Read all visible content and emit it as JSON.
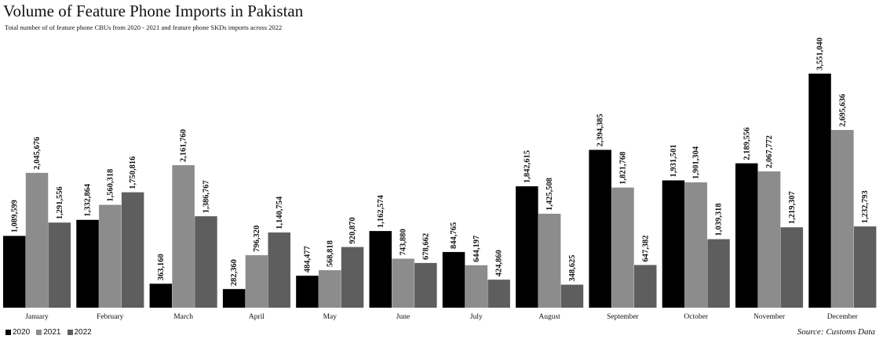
{
  "chart_data": {
    "type": "bar",
    "title": "Volume of Feature Phone Imports in Pakistan",
    "subtitle": "Total number of  of feature phone CBUs from 2020 - 2021 and feature phone SKDs imports across 2022",
    "categories": [
      "January",
      "February",
      "March",
      "April",
      "May",
      "June",
      "July",
      "August",
      "September",
      "October",
      "November",
      "December"
    ],
    "series": [
      {
        "name": "2020",
        "color": "#000000",
        "values": [
          1089599,
          1332864,
          363160,
          282360,
          484477,
          1162574,
          844765,
          1842615,
          2394385,
          1931501,
          2189556,
          3551040
        ],
        "labels": [
          "1,089,599",
          "1,332,864",
          "363,160",
          "282,360",
          "484,477",
          "1,162,574",
          "844,765",
          "1,842,615",
          "2,394,385",
          "1,931,501",
          "2,189,556",
          "3,551,040"
        ]
      },
      {
        "name": "2021",
        "color": "#8c8c8c",
        "values": [
          2045676,
          1560318,
          2161760,
          796320,
          568818,
          743880,
          644197,
          1425508,
          1821768,
          1901304,
          2067772,
          2695636
        ],
        "labels": [
          "2,045,676",
          "1,560,318",
          "2,161,760",
          "796,320",
          "568,818",
          "743,880",
          "644,197",
          "1,425,508",
          "1,821,768",
          "1,901,304",
          "2,067,772",
          "2,695,636"
        ]
      },
      {
        "name": "2022",
        "color": "#5e5e5e",
        "values": [
          1291556,
          1750816,
          1386767,
          1140754,
          920870,
          678662,
          424860,
          348625,
          647382,
          1039318,
          1219307,
          1232793
        ],
        "labels": [
          "1,291,556",
          "1,750,816",
          "1,386,767",
          "1,140,754",
          "920,870",
          "678,662",
          "424,860",
          "348,625",
          "647,382",
          "1,039,318",
          "1,219,307",
          "1,232,793"
        ]
      }
    ],
    "ylim": [
      0,
      3600000
    ],
    "grid": false,
    "legend_position": "bottom-left"
  },
  "source": "Source: Customs Data"
}
